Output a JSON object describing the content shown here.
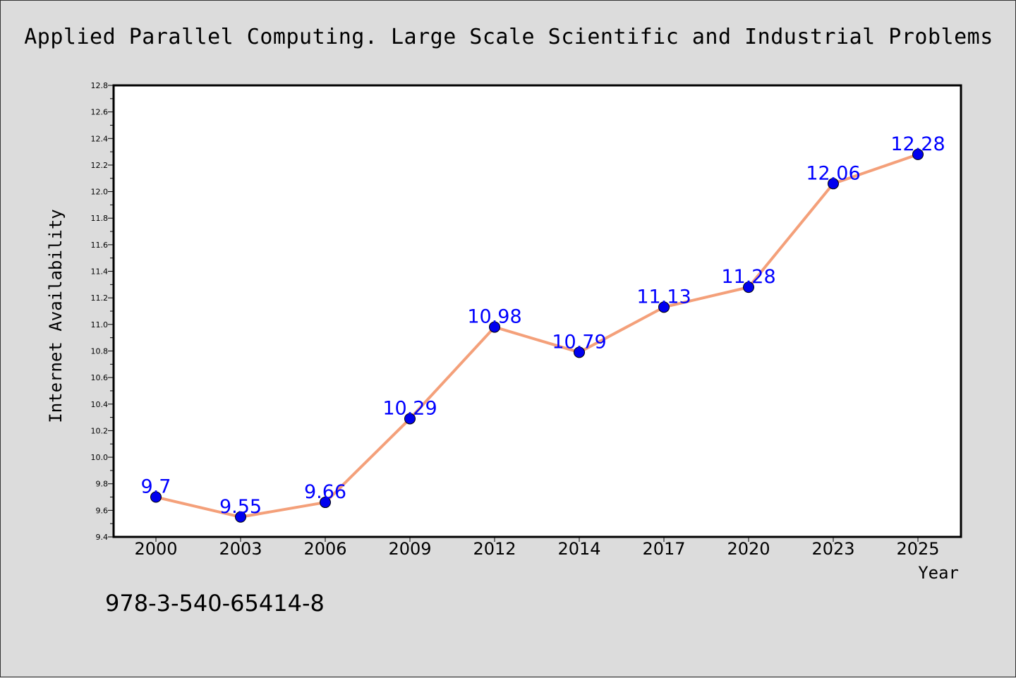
{
  "page": {
    "title": "Applied Parallel Computing. Large Scale Scientific and Industrial Problems",
    "footer_text": "978-3-540-65414-8"
  },
  "chart_data": {
    "type": "line",
    "title": "Applied Parallel Computing. Large Scale Scientific and Industrial Problems",
    "xlabel": "Year",
    "ylabel": "Internet Availability",
    "categories": [
      "2000",
      "2003",
      "2006",
      "2009",
      "2012",
      "2014",
      "2017",
      "2020",
      "2023",
      "2025"
    ],
    "values": [
      9.7,
      9.55,
      9.66,
      10.29,
      10.98,
      10.79,
      11.13,
      11.28,
      12.06,
      12.28
    ],
    "data_labels": [
      "9.7",
      "9.55",
      "9.66",
      "10.29",
      "10.98",
      "10.79",
      "11.13",
      "11.28",
      "12.06",
      "12.28"
    ],
    "ylim": [
      9.4,
      12.8
    ],
    "y_ticks": [
      "9.4",
      "9.6",
      "9.8",
      "10.0",
      "10.2",
      "10.4",
      "10.6",
      "10.8",
      "11.0",
      "11.2",
      "11.4",
      "11.6",
      "11.8",
      "12.0",
      "12.2",
      "12.4",
      "12.6",
      "12.8"
    ],
    "grid": false,
    "line_color": "#f4a07a",
    "marker_color": "#0000ee",
    "label_color": "#0000ff"
  }
}
